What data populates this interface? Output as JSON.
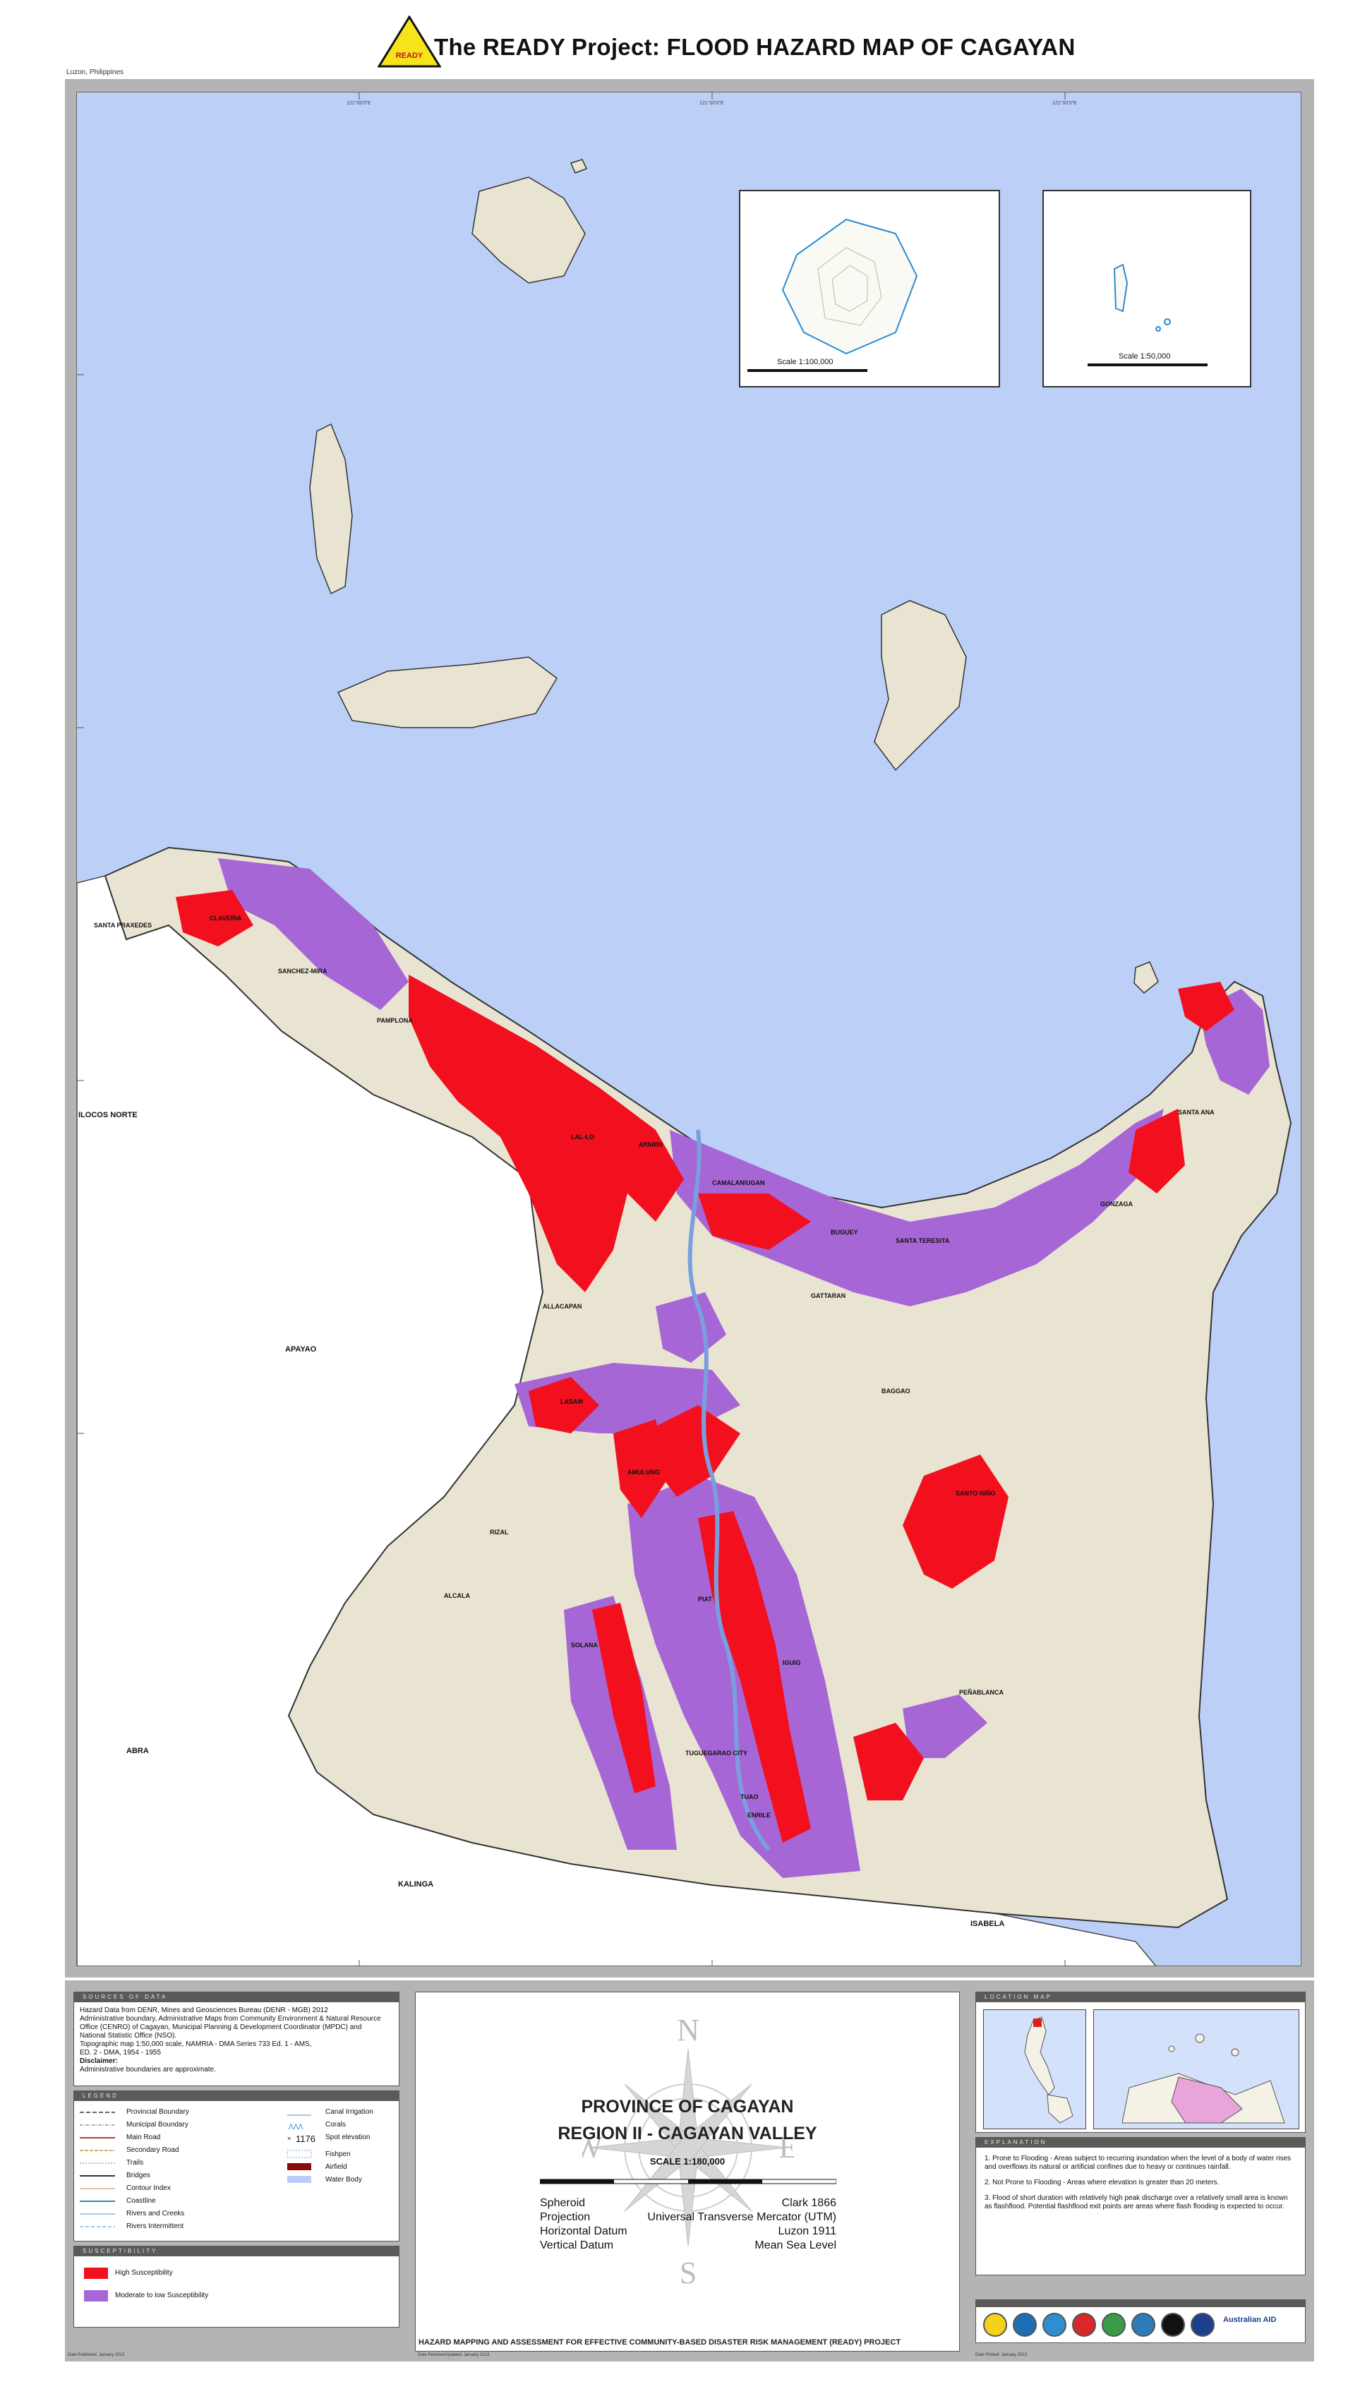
{
  "header": {
    "title": "The READY Project: FLOOD HAZARD MAP OF CAGAYAN",
    "logo_text": "READY",
    "location_note": "Luzon, Philippines"
  },
  "map": {
    "colors": {
      "sea": "#bcd0f7",
      "land": "#e9e4d2",
      "high_susceptibility": "#f2101f",
      "moderate_susceptibility": "#a766d6",
      "outside_province": "#ffffff"
    },
    "places": {
      "ilocos_norte": "ILOCOS NORTE",
      "apayao": "APAYAO",
      "abra": "ABRA",
      "kalinga": "KALINGA",
      "isabela": "ISABELA",
      "santa_praxedes": "SANTA PRAXEDES",
      "sanchez_mira": "SANCHEZ-MIRA",
      "claveria": "CLAVERIA",
      "pamplona": "PAMPLONA",
      "aparri": "APARRI",
      "camalaniugan": "CAMALANIUGAN",
      "buguey": "BUGUEY",
      "santa_teresita": "SANTA TERESITA",
      "gonzaga": "GONZAGA",
      "santa_ana": "SANTA ANA",
      "lal_lo": "LAL-LO",
      "allacapan": "ALLACAPAN",
      "gattaran": "GATTARAN",
      "lasam": "LASAM",
      "baggao": "BAGGAO",
      "santo_nino": "SANTO NIÑO",
      "rizal": "RIZAL",
      "alcala": "ALCALA",
      "amulung": "AMULUNG",
      "piat": "PIAT",
      "iguig": "IGUIG",
      "penablanca": "PEÑABLANCA",
      "solana": "SOLANA",
      "tuguegarao": "TUGUEGARAO CITY",
      "enrile": "ENRILE",
      "tuao": "TUAO"
    },
    "inset_left_scale": "Scale 1:100,000",
    "inset_right_scale": "Scale 1:50,000",
    "tick_label": "121°00'0\"E"
  },
  "sources": {
    "heading": "SOURCES OF DATA",
    "lines": [
      "Hazard Data from DENR, Mines and Geosciences Bureau (DENR - MGB) 2012",
      "Administrative boundary, Administrative Maps from Community Environment & Natural Resource",
      "Office (CENRO) of Cagayan, Municipal Planning & Development Coordinator (MPDC) and",
      "National Statistic Office (NSO).",
      "Topographic map 1:50,000 scale,  NAMRIA - DMA Series 733 Ed. 1 - AMS,",
      "  ED. 2 - DMA, 1954 - 1955"
    ],
    "disclaimer_title": "Disclaimer:",
    "disclaimer_text": "Administrative boundaries are approximate."
  },
  "legend": {
    "heading": "LEGEND",
    "left_items": [
      "Provincial Boundary",
      "Municipal Boundary",
      "Main Road",
      "Secondary Road",
      "Trails",
      "Bridges",
      "Contour Index",
      "Coastline",
      "Rivers and Creeks",
      "Rivers Intermittent"
    ],
    "right_items": [
      "Canal Irrigation",
      "Corals",
      "Spot elevation",
      "Fishpen",
      "Airfield",
      "Water Body"
    ],
    "spot_elevation_value": "1176"
  },
  "susceptibility": {
    "heading": "SUSCEPTIBILITY",
    "high": "High Susceptibility",
    "moderate": "Moderate to low Susceptibility"
  },
  "center": {
    "province": "PROVINCE OF CAGAYAN",
    "region": "REGION II - CAGAYAN VALLEY",
    "scale": "SCALE 1:180,000",
    "compass": {
      "n": "N",
      "s": "S",
      "e": "E",
      "w": "W"
    },
    "datum": [
      {
        "label": "Spheroid",
        "value": "Clark 1866"
      },
      {
        "label": "Projection",
        "value": "Universal Transverse Mercator (UTM)"
      },
      {
        "label": "Horizontal Datum",
        "value": "Luzon 1911"
      },
      {
        "label": "Vertical Datum",
        "value": "Mean Sea Level"
      }
    ],
    "footer": "HAZARD MAPPING AND ASSESSMENT FOR EFFECTIVE COMMUNITY-BASED DISASTER RISK MANAGEMENT (READY) PROJECT"
  },
  "location_map": {
    "heading": "LOCATION MAP"
  },
  "explanation": {
    "heading": "EXPLANATION",
    "items": [
      "1. Prone to Flooding - Areas subject to recurring inundation when the level of a body of water rises and overflows its natural or artificial confines due to heavy or continues rainfall.",
      "2. Not Prone to Flooding - Areas where elevation is greater than 20 meters.",
      "3. Flood of short duration with relatively high peak discharge over a relatively small area is known as flashflood. Potential flashflood exit points are areas where flash flooding is expected to occur."
    ]
  },
  "partner_logos": {
    "colors": [
      "#f5d21a",
      "#1c6fb5",
      "#2d8fd0",
      "#d8282a",
      "#3a9b4a",
      "#2f7ab8",
      "#111111",
      "#1d3f8f",
      "#222222"
    ],
    "australian_aid_label": "Australian AID"
  },
  "footnotes": {
    "left": "Date Published: January 2013",
    "middle": "Date Revision/Updated: January 2013",
    "right": "Date Printed: January 2013"
  }
}
